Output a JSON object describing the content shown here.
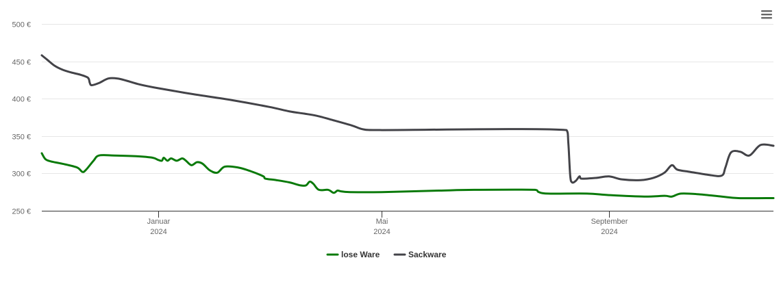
{
  "chart_data": {
    "type": "line",
    "title": "",
    "xlabel": "",
    "ylabel": "",
    "ylim": [
      250,
      500
    ],
    "y_ticks": [
      250,
      300,
      350,
      400,
      450,
      500
    ],
    "y_tick_suffix": " €",
    "x_range": [
      "2023-10-30",
      "2024-11-29"
    ],
    "x_ticks": [
      {
        "date": "2024-01-01",
        "month": "Januar",
        "year": "2024"
      },
      {
        "date": "2024-05-01",
        "month": "Mai",
        "year": "2024"
      },
      {
        "date": "2024-09-01",
        "month": "September",
        "year": "2024"
      }
    ],
    "grid": true,
    "legend_position": "bottom-center",
    "series": [
      {
        "name": "lose Ware",
        "color": "#0a7a0a",
        "points": [
          [
            "2023-10-30",
            327
          ],
          [
            "2023-11-01",
            319
          ],
          [
            "2023-11-04",
            316
          ],
          [
            "2023-11-10",
            313
          ],
          [
            "2023-11-18",
            308
          ],
          [
            "2023-11-21",
            302
          ],
          [
            "2023-11-23",
            305
          ],
          [
            "2023-11-27",
            317
          ],
          [
            "2023-11-30",
            324
          ],
          [
            "2023-12-08",
            324
          ],
          [
            "2023-12-20",
            323
          ],
          [
            "2023-12-29",
            321
          ],
          [
            "2024-01-01",
            318
          ],
          [
            "2024-01-03",
            317
          ],
          [
            "2024-01-04",
            321
          ],
          [
            "2024-01-06",
            317
          ],
          [
            "2024-01-08",
            320
          ],
          [
            "2024-01-11",
            317
          ],
          [
            "2024-01-14",
            320
          ],
          [
            "2024-01-16",
            317
          ],
          [
            "2024-01-19",
            311
          ],
          [
            "2024-01-22",
            315
          ],
          [
            "2024-01-25",
            313
          ],
          [
            "2024-01-29",
            304
          ],
          [
            "2024-02-02",
            301
          ],
          [
            "2024-02-06",
            309
          ],
          [
            "2024-02-13",
            308
          ],
          [
            "2024-02-20",
            303
          ],
          [
            "2024-02-27",
            296
          ],
          [
            "2024-02-28",
            293
          ],
          [
            "2024-03-05",
            291
          ],
          [
            "2024-03-12",
            288
          ],
          [
            "2024-03-18",
            284
          ],
          [
            "2024-03-21",
            284
          ],
          [
            "2024-03-23",
            289
          ],
          [
            "2024-03-25",
            286
          ],
          [
            "2024-03-28",
            278
          ],
          [
            "2024-04-02",
            278
          ],
          [
            "2024-04-05",
            274
          ],
          [
            "2024-04-07",
            277
          ],
          [
            "2024-04-09",
            276
          ],
          [
            "2024-04-14",
            275
          ],
          [
            "2024-05-01",
            275
          ],
          [
            "2024-06-01",
            277
          ],
          [
            "2024-06-20",
            278
          ],
          [
            "2024-07-23",
            278
          ],
          [
            "2024-07-25",
            275
          ],
          [
            "2024-07-30",
            273
          ],
          [
            "2024-08-20",
            273
          ],
          [
            "2024-09-01",
            271
          ],
          [
            "2024-09-20",
            269
          ],
          [
            "2024-10-01",
            270
          ],
          [
            "2024-10-05",
            269
          ],
          [
            "2024-10-10",
            273
          ],
          [
            "2024-10-20",
            272
          ],
          [
            "2024-11-01",
            269
          ],
          [
            "2024-11-10",
            267
          ],
          [
            "2024-11-29",
            267
          ]
        ]
      },
      {
        "name": "Sackware",
        "color": "#434348",
        "points": [
          [
            "2023-10-30",
            458
          ],
          [
            "2023-11-02",
            452
          ],
          [
            "2023-11-06",
            444
          ],
          [
            "2023-11-10",
            439
          ],
          [
            "2023-11-15",
            435
          ],
          [
            "2023-11-20",
            432
          ],
          [
            "2023-11-24",
            428
          ],
          [
            "2023-11-25",
            421
          ],
          [
            "2023-11-26",
            418
          ],
          [
            "2023-11-30",
            421
          ],
          [
            "2023-12-05",
            427
          ],
          [
            "2023-12-10",
            427
          ],
          [
            "2023-12-15",
            424
          ],
          [
            "2023-12-22",
            419
          ],
          [
            "2024-01-01",
            414
          ],
          [
            "2024-01-20",
            406
          ],
          [
            "2024-02-10",
            398
          ],
          [
            "2024-03-01",
            389
          ],
          [
            "2024-03-12",
            383
          ],
          [
            "2024-03-20",
            380
          ],
          [
            "2024-03-27",
            377
          ],
          [
            "2024-04-05",
            371
          ],
          [
            "2024-04-15",
            364
          ],
          [
            "2024-04-21",
            359
          ],
          [
            "2024-04-30",
            358
          ],
          [
            "2024-08-09",
            358
          ],
          [
            "2024-08-10",
            340
          ],
          [
            "2024-08-11",
            297
          ],
          [
            "2024-08-12",
            288
          ],
          [
            "2024-08-14",
            290
          ],
          [
            "2024-08-16",
            296
          ],
          [
            "2024-08-17",
            293
          ],
          [
            "2024-08-25",
            294
          ],
          [
            "2024-09-01",
            296
          ],
          [
            "2024-09-08",
            292
          ],
          [
            "2024-09-18",
            291
          ],
          [
            "2024-09-25",
            294
          ],
          [
            "2024-10-01",
            301
          ],
          [
            "2024-10-05",
            311
          ],
          [
            "2024-10-08",
            305
          ],
          [
            "2024-10-15",
            302
          ],
          [
            "2024-10-25",
            298
          ],
          [
            "2024-11-01",
            297
          ],
          [
            "2024-11-03",
            308
          ],
          [
            "2024-11-06",
            328
          ],
          [
            "2024-11-11",
            329
          ],
          [
            "2024-11-16",
            324
          ],
          [
            "2024-11-22",
            338
          ],
          [
            "2024-11-29",
            337
          ]
        ]
      }
    ]
  },
  "toolbar": {
    "menu_icon": "hamburger-menu-icon"
  }
}
